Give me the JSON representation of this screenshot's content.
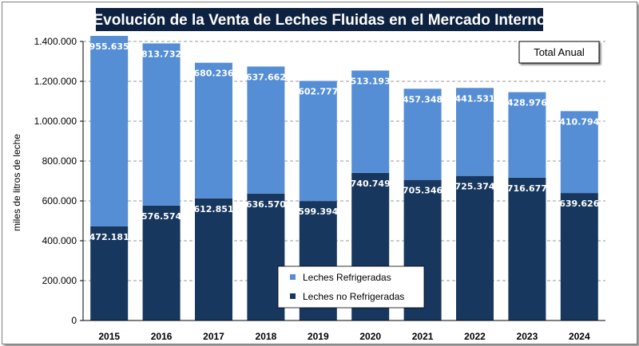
{
  "chart_data": {
    "type": "bar",
    "stacked": true,
    "title": "Evolución de la Venta de Leches Fluidas en el Mercado Interno",
    "annotation": "Total Anual",
    "xlabel": "",
    "ylabel": "miles de litros de leche",
    "ylim": [
      0,
      1400000
    ],
    "ytick_values": [
      0,
      200000,
      400000,
      600000,
      800000,
      1000000,
      1200000,
      1400000
    ],
    "yticks": [
      "0",
      "200.000",
      "400.000",
      "600.000",
      "800.000",
      "1.000.000",
      "1.200.000",
      "1.400.000"
    ],
    "grid": true,
    "legend_position": "bottom-center",
    "categories": [
      "2015",
      "2016",
      "2017",
      "2018",
      "2019",
      "2020",
      "2021",
      "2022",
      "2023",
      "2024"
    ],
    "series": [
      {
        "name": "Leches no Refrigeradas",
        "color": "#17375e",
        "values": [
          472181,
          576574,
          612851,
          636570,
          599394,
          740749,
          705346,
          725374,
          716677,
          639626
        ],
        "labels": [
          "472.181",
          "576.574",
          "612.851",
          "636.570",
          "599.394",
          "740.749",
          "705.346",
          "725.374",
          "716.677",
          "639.626"
        ]
      },
      {
        "name": "Leches Refrigeradas",
        "color": "#558ed5",
        "values": [
          955635,
          813732,
          680236,
          637662,
          602777,
          513193,
          457348,
          441531,
          428976,
          410794
        ],
        "labels": [
          "955.635",
          "813.732",
          "680.236",
          "637.662",
          "602.777",
          "513.193",
          "457.348",
          "441.531",
          "428.976",
          "410.794"
        ]
      }
    ],
    "legend": [
      "Leches Refrigeradas",
      "Leches no Refrigeradas"
    ]
  }
}
